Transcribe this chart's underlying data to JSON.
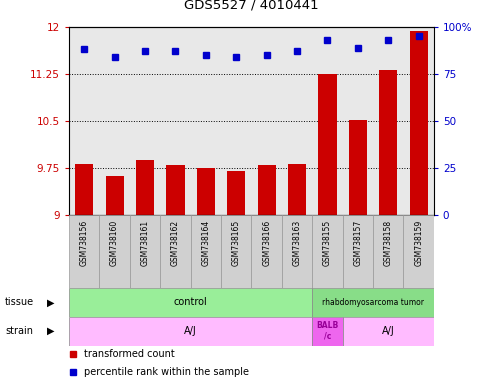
{
  "title": "GDS5527 / 4010441",
  "samples": [
    "GSM738156",
    "GSM738160",
    "GSM738161",
    "GSM738162",
    "GSM738164",
    "GSM738165",
    "GSM738166",
    "GSM738163",
    "GSM738155",
    "GSM738157",
    "GSM738158",
    "GSM738159"
  ],
  "bar_values": [
    9.82,
    9.63,
    9.87,
    9.8,
    9.75,
    9.7,
    9.79,
    9.82,
    11.25,
    10.52,
    11.32,
    11.93
  ],
  "dot_values": [
    88,
    84,
    87,
    87,
    85,
    84,
    85,
    87,
    93,
    89,
    93,
    95
  ],
  "bar_color": "#cc0000",
  "dot_color": "#0000cc",
  "ylim_left": [
    9.0,
    12.0
  ],
  "ylim_right": [
    0,
    100
  ],
  "yticks_left": [
    9.0,
    9.75,
    10.5,
    11.25,
    12.0
  ],
  "yticks_right": [
    0,
    25,
    50,
    75,
    100
  ],
  "ytick_labels_left": [
    "9",
    "9.75",
    "10.5",
    "11.25",
    "12"
  ],
  "ytick_labels_right": [
    "0",
    "25",
    "50",
    "75",
    "100%"
  ],
  "hlines": [
    9.75,
    10.5,
    11.25
  ],
  "tissue_control_color": "#99ee99",
  "tissue_tumor_color": "#88dd88",
  "strain_aj_color": "#ffbbff",
  "strain_balb_color": "#ee66ee",
  "plot_bg_color": "#e8e8e8",
  "sample_box_color": "#d0d0d0"
}
